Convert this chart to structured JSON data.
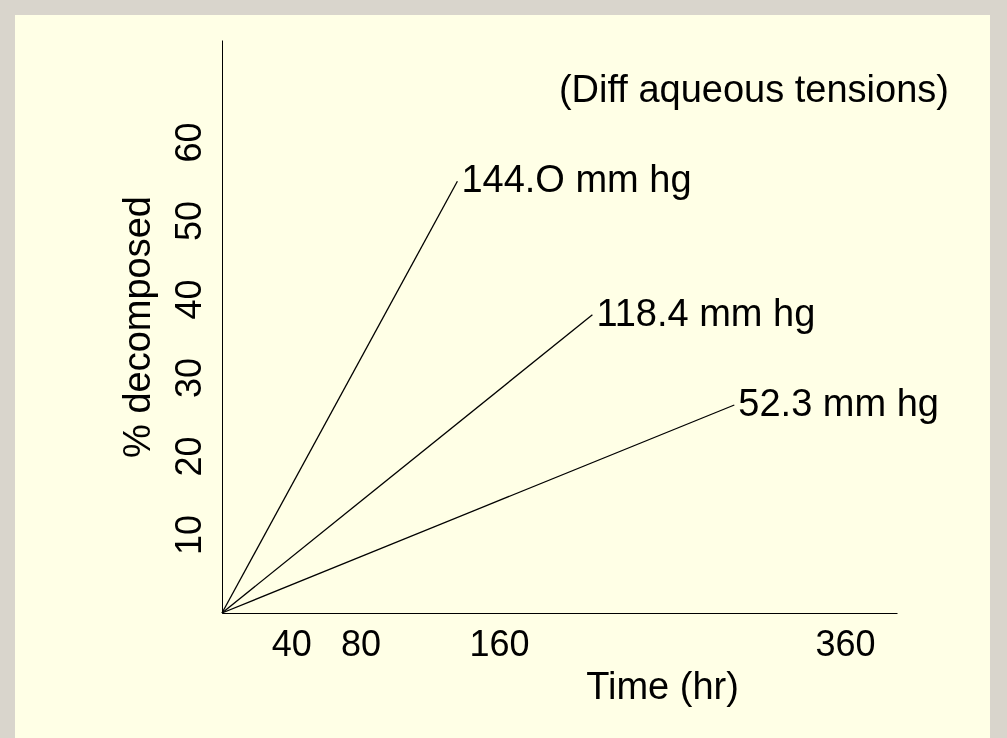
{
  "chart_data": {
    "type": "line",
    "title": "(Diff aqueous tensions)",
    "xlabel": "Time (hr)",
    "ylabel": "% decomposed",
    "xlim": [
      0,
      390
    ],
    "ylim": [
      0,
      73
    ],
    "xticks": [
      40,
      80,
      160,
      360
    ],
    "yticks": [
      10,
      20,
      30,
      40,
      50,
      60
    ],
    "grid": false,
    "legend": false,
    "marker": "none",
    "line_style": "solid",
    "series": [
      {
        "name": "144.O mm hg",
        "color": "#000000",
        "x": [
          0,
          136
        ],
        "values": [
          0,
          55
        ]
      },
      {
        "name": "118.4 mm hg",
        "color": "#000000",
        "x": [
          0,
          214
        ],
        "values": [
          0,
          38
        ]
      },
      {
        "name": "52.3 mm hg",
        "color": "#000000",
        "x": [
          0,
          296
        ],
        "values": [
          0,
          26.5
        ]
      }
    ]
  }
}
